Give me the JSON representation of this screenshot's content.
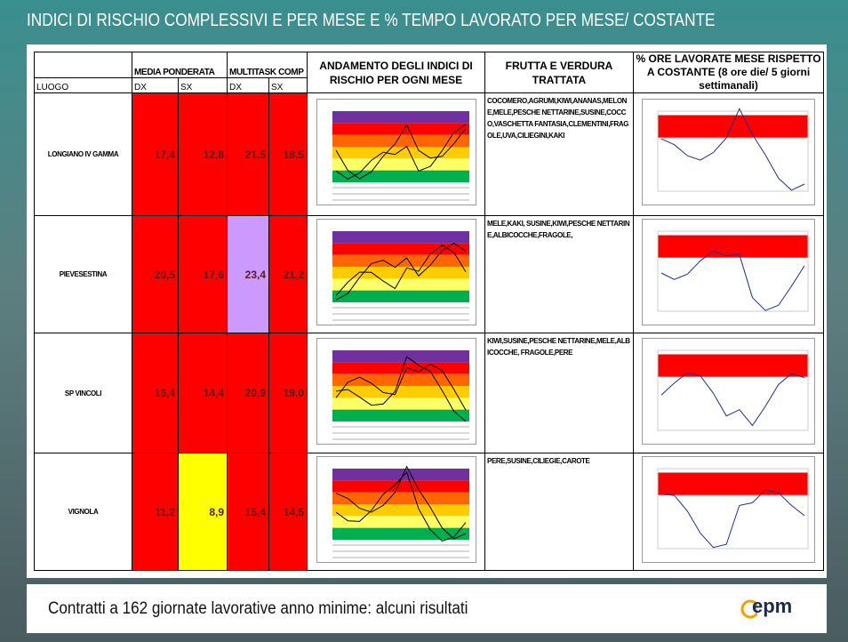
{
  "title": "INDICI DI RISCHIO COMPLESSIVI E PER MESE E % TEMPO LAVORATO PER MESE/ COSTANTE",
  "table": {
    "group_headers": [
      "MEDIA PONDERATA",
      "MULTITASK COMP"
    ],
    "sub_headers": [
      "LUOGO",
      "DX",
      "SX",
      "DX",
      "SX"
    ],
    "col_headers": [
      "ANDAMENTO DEGLI INDICI DI RISCHIO PER OGNI MESE",
      "FRUTTA E VERDURA TRATTATA",
      "% ORE LAVORATE MESE RISPETTO A COSTANTE (8 ore die/ 5 giorni settimanali)"
    ],
    "rows": [
      {
        "luogo": "LONGIANO IV GAMMA",
        "cells": [
          {
            "text": "17,4",
            "color": "#ff0000"
          },
          {
            "text": "12,8",
            "color": "#ff0000"
          },
          {
            "text": "21,5",
            "color": "#ff0000"
          },
          {
            "text": "18,5",
            "color": "#ff0000"
          }
        ],
        "frutta": "COCOMERO,AGRUMI,KIWI,ANANAS,MELONE,MELE,PESCHE NETTARINE,SUSINE,COCCO,VASCHETTA FANTASIA,CLEMENTINI,FRAGOLE,UVA,CILIEGINI,KAKI"
      },
      {
        "luogo": "PIEVESESTINA",
        "cells": [
          {
            "text": "20,5",
            "color": "#ff0000"
          },
          {
            "text": "17,6",
            "color": "#ff0000"
          },
          {
            "text": "23,4",
            "color": "#cc99ff"
          },
          {
            "text": "21,2",
            "color": "#ff0000"
          }
        ],
        "frutta": "MELE,KAKI, SUSINE,KIWI,PESCHE NETTARINE,ALBICOCCHE,FRAGOLE,"
      },
      {
        "luogo": "SP VINCOLI",
        "cells": [
          {
            "text": "16,4",
            "color": "#ff0000"
          },
          {
            "text": "14,4",
            "color": "#ff0000"
          },
          {
            "text": "20,9",
            "color": "#ff0000"
          },
          {
            "text": "19,0",
            "color": "#ff0000"
          }
        ],
        "frutta": "KIWI,SUSINE,PESCHE NETTARINE,MELE,ALBICOCCHE, FRAGOLE,PERE"
      },
      {
        "luogo": "VIGNOLA",
        "cells": [
          {
            "text": "11,2",
            "color": "#ff0000"
          },
          {
            "text": "8,9",
            "color": "#ffff00"
          },
          {
            "text": "15,4",
            "color": "#ff0000"
          },
          {
            "text": "14,5",
            "color": "#ff0000"
          }
        ],
        "frutta": "PERE,SUSINE,CILIEGIE,CAROTE"
      }
    ]
  },
  "footer": "Contratti a 162 giornate lavorative anno minime: alcuni risultati",
  "logo": "epm"
}
